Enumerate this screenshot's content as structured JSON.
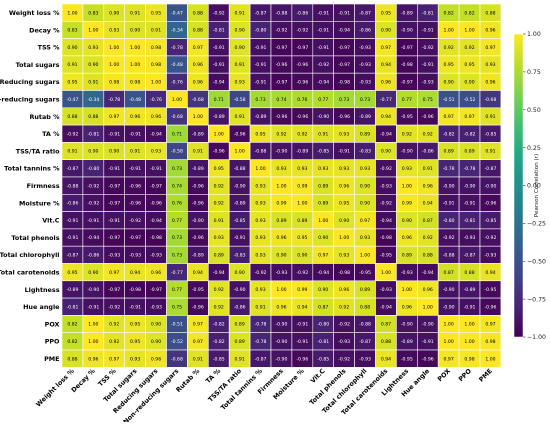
{
  "chart_data": {
    "type": "heatmap",
    "title": "",
    "xlabel": "",
    "ylabel": "",
    "variables": [
      "Weight loss %",
      "Decay %",
      "TSS %",
      "Total sugars",
      "Reducing sugars",
      "Non-reducing sugars",
      "Rutab %",
      "TA %",
      "TSS/TA ratio",
      "Total tannins %",
      "Firmness",
      "Moisture %",
      "Vit.C",
      "Total phenols",
      "Total chlorophyll",
      "Total carotenoids",
      "Lightness",
      "Hue angle",
      "POX",
      "PPO",
      "PME"
    ],
    "matrix": [
      [
        1.0,
        0.83,
        0.9,
        0.91,
        0.95,
        -0.47,
        0.88,
        -0.92,
        0.91,
        -0.87,
        -0.88,
        -0.86,
        -0.91,
        -0.91,
        -0.87,
        0.95,
        -0.89,
        -0.81,
        0.82,
        0.82,
        0.88
      ],
      [
        0.83,
        1.0,
        0.93,
        0.9,
        0.91,
        -0.34,
        0.88,
        -0.81,
        0.9,
        -0.8,
        -0.92,
        -0.92,
        -0.91,
        -0.94,
        -0.86,
        0.9,
        -0.9,
        -0.91,
        1.0,
        1.0,
        0.96
      ],
      [
        0.9,
        0.93,
        1.0,
        1.0,
        0.98,
        -0.78,
        0.97,
        -0.91,
        0.9,
        -0.91,
        -0.97,
        -0.97,
        -0.91,
        -0.97,
        -0.93,
        0.97,
        -0.97,
        -0.92,
        0.92,
        0.92,
        0.97
      ],
      [
        0.91,
        0.9,
        1.0,
        1.0,
        0.98,
        -0.48,
        0.96,
        -0.91,
        0.91,
        -0.91,
        -0.96,
        -0.96,
        -0.92,
        -0.97,
        -0.93,
        0.94,
        -0.98,
        -0.91,
        0.95,
        0.95,
        0.93
      ],
      [
        0.95,
        0.91,
        0.98,
        0.98,
        1.0,
        -0.76,
        0.96,
        -0.94,
        0.93,
        -0.91,
        -0.97,
        -0.96,
        -0.94,
        -0.98,
        -0.93,
        0.96,
        -0.97,
        -0.93,
        0.9,
        0.9,
        0.96
      ],
      [
        -0.47,
        -0.34,
        -0.78,
        -0.48,
        -0.76,
        1.0,
        -0.68,
        0.71,
        -0.58,
        0.73,
        0.74,
        0.76,
        0.77,
        0.73,
        0.73,
        -0.77,
        0.77,
        0.75,
        -0.51,
        -0.52,
        -0.68
      ],
      [
        0.88,
        0.88,
        0.97,
        0.96,
        0.96,
        -0.68,
        1.0,
        -0.89,
        0.91,
        -0.89,
        -0.96,
        -0.96,
        -0.9,
        -0.96,
        -0.89,
        0.94,
        -0.95,
        -0.96,
        0.97,
        0.97,
        0.91
      ],
      [
        -0.92,
        -0.81,
        -0.91,
        -0.91,
        -0.94,
        0.71,
        -0.89,
        1.0,
        -0.96,
        0.95,
        0.92,
        0.92,
        0.91,
        0.93,
        0.89,
        -0.94,
        0.92,
        0.92,
        -0.82,
        -0.82,
        -0.85
      ],
      [
        0.91,
        0.9,
        0.9,
        0.91,
        0.93,
        -0.58,
        0.91,
        -0.96,
        1.0,
        -0.88,
        -0.9,
        -0.89,
        -0.85,
        -0.91,
        -0.83,
        0.9,
        -0.9,
        -0.86,
        0.89,
        0.89,
        0.91
      ],
      [
        -0.87,
        -0.8,
        -0.91,
        -0.91,
        -0.91,
        0.73,
        -0.89,
        0.95,
        -0.88,
        1.0,
        0.93,
        0.93,
        0.93,
        0.93,
        0.93,
        -0.92,
        0.93,
        0.91,
        -0.78,
        -0.78,
        -0.87
      ],
      [
        -0.88,
        -0.92,
        -0.97,
        -0.96,
        -0.97,
        0.74,
        -0.96,
        0.92,
        -0.9,
        0.93,
        1.0,
        0.99,
        0.89,
        0.96,
        0.9,
        -0.93,
        1.0,
        0.96,
        -0.9,
        -0.9,
        -0.9
      ],
      [
        -0.86,
        -0.92,
        -0.97,
        -0.96,
        -0.96,
        0.76,
        -0.96,
        0.92,
        -0.89,
        0.93,
        0.99,
        1.0,
        0.89,
        0.95,
        0.9,
        -0.92,
        0.99,
        0.94,
        -0.91,
        -0.91,
        -0.96
      ],
      [
        -0.91,
        -0.91,
        -0.91,
        -0.92,
        -0.94,
        0.77,
        -0.9,
        0.91,
        -0.85,
        0.93,
        0.89,
        0.89,
        1.0,
        0.9,
        0.97,
        -0.94,
        0.9,
        0.87,
        -0.8,
        -0.81,
        -0.85
      ],
      [
        -0.91,
        -0.94,
        -0.97,
        -0.97,
        -0.98,
        0.73,
        -0.96,
        0.93,
        -0.91,
        0.93,
        0.96,
        0.95,
        0.9,
        1.0,
        0.93,
        -0.98,
        0.96,
        0.92,
        -0.92,
        -0.93,
        -0.92
      ],
      [
        -0.87,
        -0.86,
        -0.93,
        -0.93,
        -0.93,
        0.73,
        -0.89,
        0.89,
        -0.83,
        0.93,
        0.9,
        0.9,
        0.97,
        0.93,
        1.0,
        -0.95,
        0.89,
        0.88,
        -0.88,
        -0.87,
        -0.93
      ],
      [
        0.95,
        0.9,
        0.97,
        0.94,
        0.96,
        -0.77,
        0.94,
        -0.94,
        0.9,
        -0.92,
        -0.93,
        -0.92,
        -0.94,
        -0.98,
        -0.95,
        1.0,
        -0.93,
        -0.94,
        0.87,
        0.88,
        0.94
      ],
      [
        -0.89,
        -0.9,
        -0.97,
        -0.98,
        -0.97,
        0.77,
        -0.95,
        0.92,
        -0.9,
        0.93,
        1.0,
        0.99,
        0.9,
        0.96,
        0.89,
        -0.93,
        1.0,
        0.96,
        -0.9,
        -0.89,
        -0.95
      ],
      [
        -0.81,
        -0.91,
        -0.92,
        -0.91,
        -0.93,
        0.75,
        -0.96,
        0.92,
        -0.86,
        0.91,
        0.96,
        0.94,
        0.87,
        0.92,
        0.88,
        -0.94,
        0.96,
        1.0,
        -0.9,
        -0.91,
        -0.96
      ],
      [
        0.82,
        1.0,
        0.92,
        0.95,
        0.9,
        -0.51,
        0.97,
        -0.82,
        0.89,
        -0.78,
        -0.9,
        -0.91,
        -0.8,
        -0.92,
        -0.88,
        0.87,
        -0.9,
        -0.9,
        1.0,
        1.0,
        0.97
      ],
      [
        0.82,
        1.0,
        0.92,
        0.95,
        0.9,
        -0.52,
        0.97,
        -0.82,
        0.89,
        -0.78,
        -0.9,
        -0.91,
        -0.81,
        -0.93,
        -0.87,
        0.88,
        -0.89,
        -0.91,
        1.0,
        1.0,
        0.98
      ],
      [
        0.88,
        0.96,
        0.97,
        0.93,
        0.96,
        -0.68,
        0.91,
        -0.85,
        0.91,
        -0.87,
        -0.9,
        -0.96,
        -0.85,
        -0.92,
        -0.93,
        0.94,
        -0.95,
        -0.96,
        0.97,
        0.98,
        1.0
      ]
    ],
    "colorbar": {
      "label": "Pearson Correlation (r)",
      "range": [
        -1.0,
        1.0
      ],
      "ticks": [
        -1.0,
        -0.75,
        -0.5,
        -0.25,
        0.0,
        0.25,
        0.5,
        0.75,
        1.0
      ],
      "tick_labels": [
        "−1.00",
        "−0.75",
        "−0.50",
        "−0.25",
        "0.00",
        "0.25",
        "0.50",
        "0.75",
        "1.00"
      ],
      "colormap": "viridis"
    },
    "colors": {
      "low": "#440154",
      "high": "#fde725",
      "cell_border": "#ffffff",
      "label_text": "#000000"
    }
  }
}
